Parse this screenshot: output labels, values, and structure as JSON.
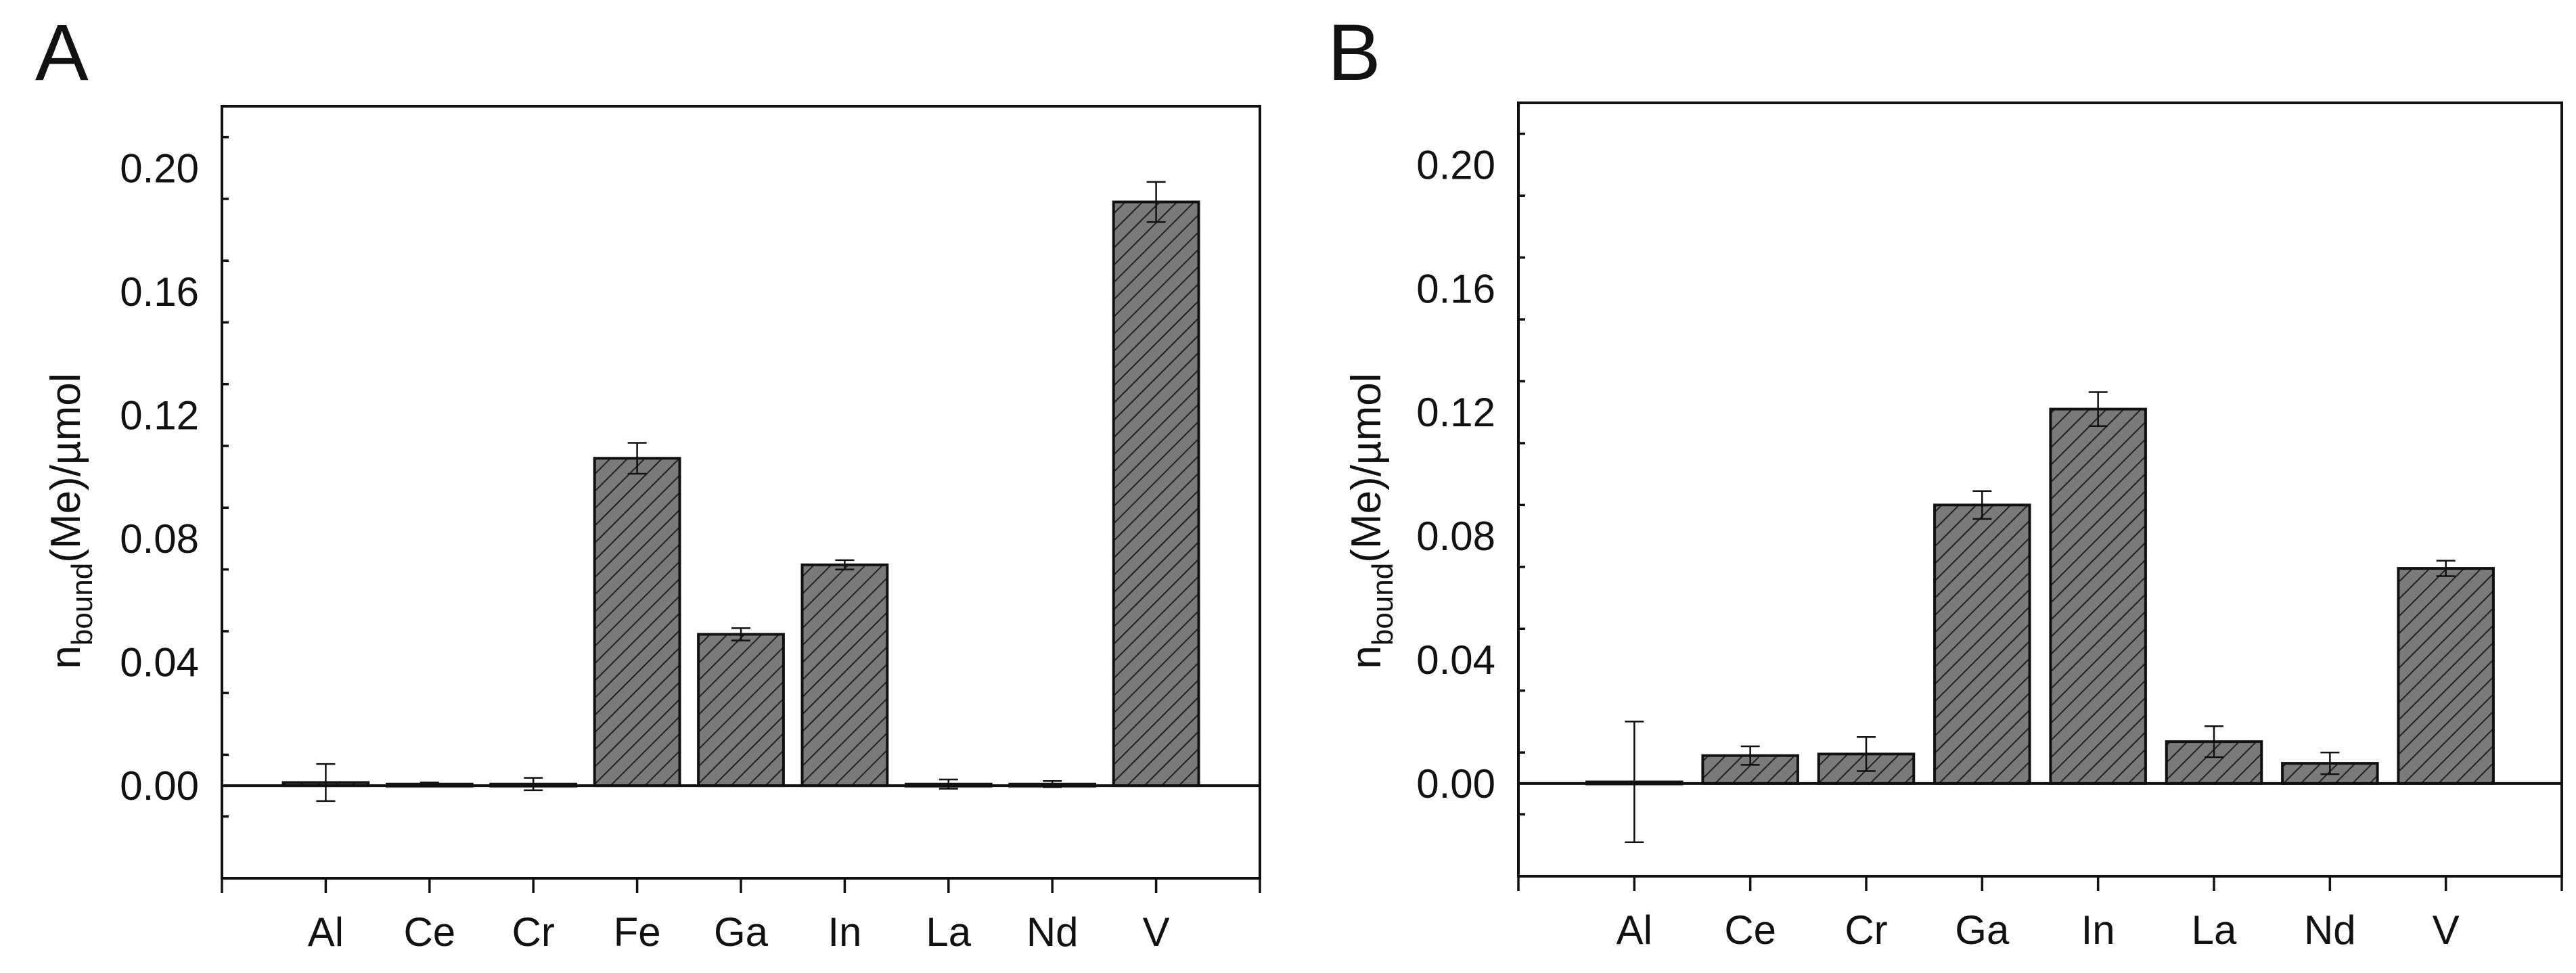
{
  "colors": {
    "bar_fill": "#7a7a7a",
    "hatch": "#222222",
    "axis": "#111111"
  },
  "chart_data": [
    {
      "panel_label": "A",
      "type": "bar",
      "categories": [
        "Al",
        "Ce",
        "Cr",
        "Fe",
        "Ga",
        "In",
        "La",
        "Nd",
        "V"
      ],
      "values": [
        0.001,
        0.0005,
        0.0005,
        0.106,
        0.049,
        0.0715,
        0.0005,
        0.0005,
        0.189
      ],
      "errors": [
        0.006,
        0.0005,
        0.002,
        0.005,
        0.002,
        0.0015,
        0.0015,
        0.001,
        0.0065
      ],
      "ylabel_main": "n",
      "ylabel_sub": "bound",
      "ylabel_rest": "(Me)/µmol",
      "ylim": [
        -0.03,
        0.22
      ],
      "yticks": [
        0.0,
        0.04,
        0.08,
        0.12,
        0.16,
        0.2
      ],
      "ytick_labels": [
        "0.00",
        "0.04",
        "0.08",
        "0.12",
        "0.16",
        "0.20"
      ],
      "pattern": "diagonal-hatch",
      "legend": "none"
    },
    {
      "panel_label": "B",
      "type": "bar",
      "categories": [
        "Al",
        "Ce",
        "Cr",
        "Ga",
        "In",
        "La",
        "Nd",
        "V"
      ],
      "values": [
        0.0005,
        0.009,
        0.0095,
        0.09,
        0.121,
        0.0135,
        0.0065,
        0.0695
      ],
      "errors": [
        0.0195,
        0.003,
        0.0055,
        0.0045,
        0.0055,
        0.005,
        0.0035,
        0.0025
      ],
      "ylabel_main": "n",
      "ylabel_sub": "bound",
      "ylabel_rest": "(Me)/µmol",
      "ylim": [
        -0.03,
        0.22
      ],
      "yticks": [
        0.0,
        0.04,
        0.08,
        0.12,
        0.16,
        0.2
      ],
      "ytick_labels": [
        "0.00",
        "0.04",
        "0.08",
        "0.12",
        "0.16",
        "0.20"
      ],
      "pattern": "diagonal-hatch",
      "legend": "none"
    }
  ]
}
